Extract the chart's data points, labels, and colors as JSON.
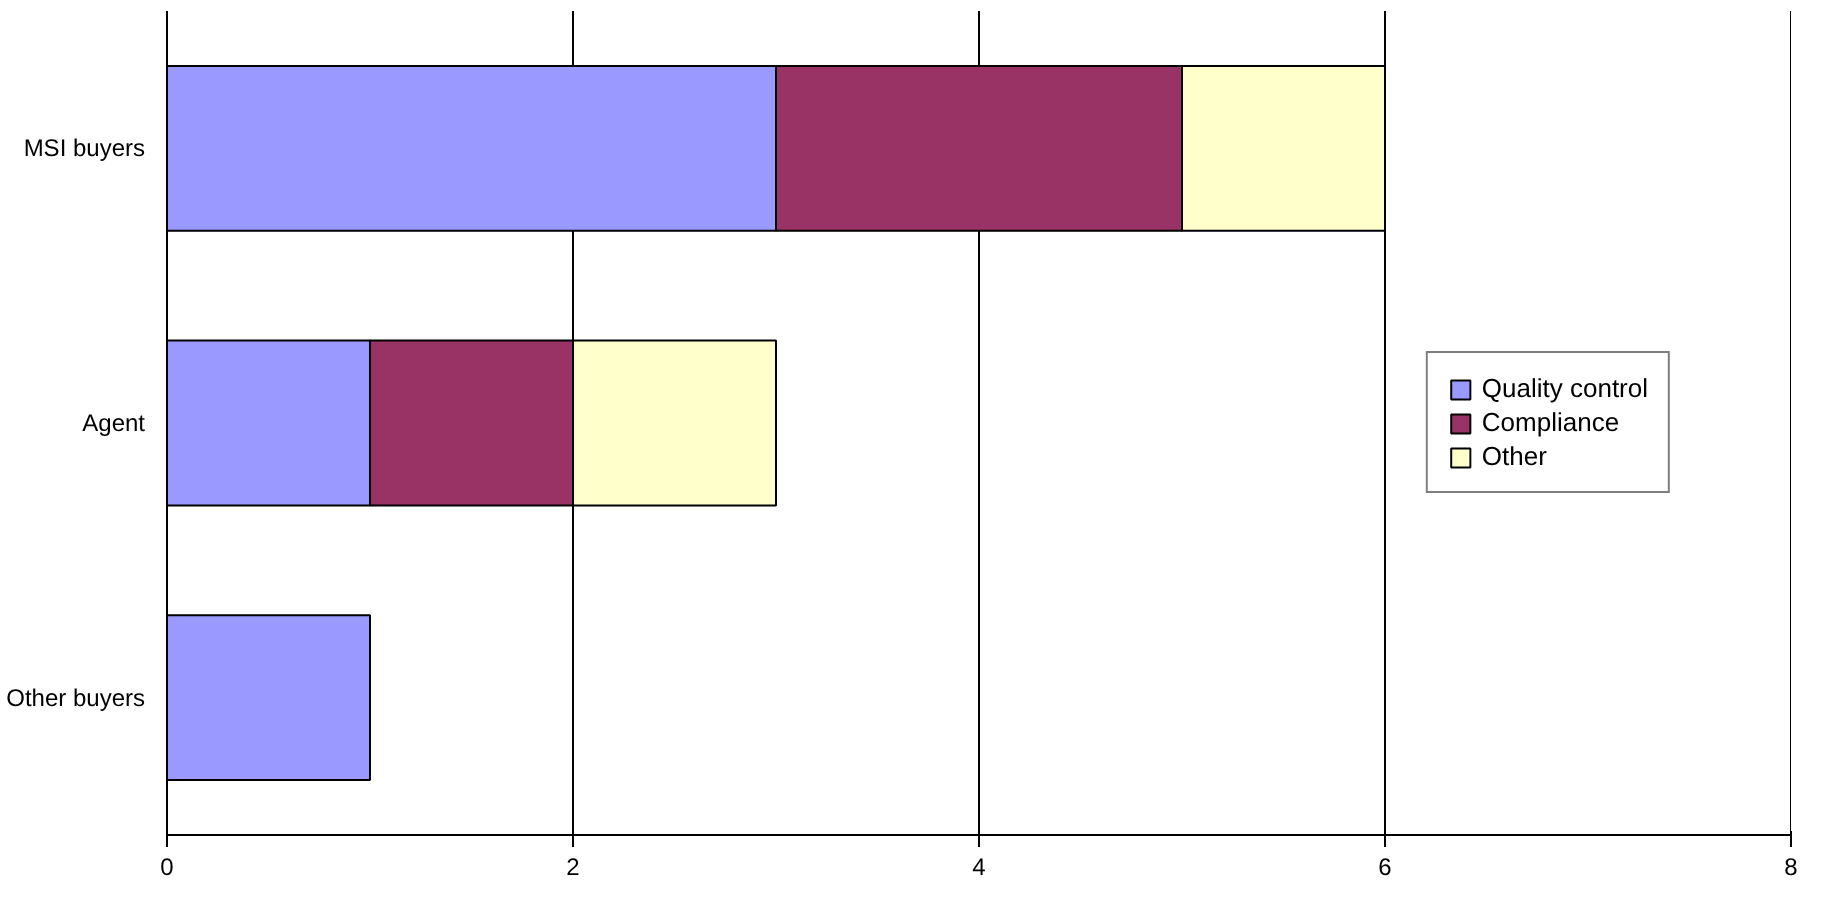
{
  "chart_data": {
    "type": "bar",
    "orientation": "horizontal",
    "stacked": true,
    "categories": [
      "MSI buyers",
      "Agent",
      "Other buyers"
    ],
    "series": [
      {
        "name": "Quality control",
        "color": "#9999ff",
        "values": [
          3,
          1,
          1
        ]
      },
      {
        "name": "Compliance",
        "color": "#993366",
        "values": [
          2,
          1,
          null
        ]
      },
      {
        "name": "Other",
        "color": "#ffffcc",
        "values": [
          1,
          1,
          null
        ]
      }
    ],
    "xlim": [
      0,
      8
    ],
    "xticks": [
      0,
      2,
      4,
      6,
      8
    ],
    "grid": "x",
    "legend": "right"
  }
}
